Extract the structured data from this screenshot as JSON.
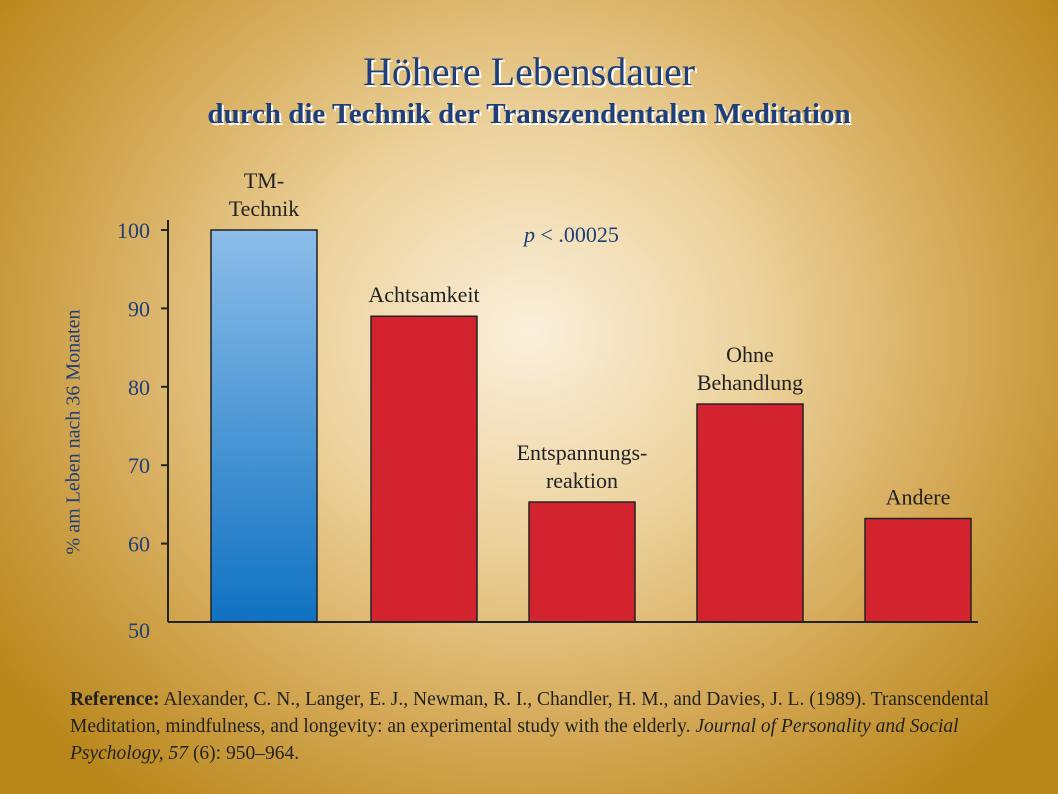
{
  "title": "Höhere Lebensdauer",
  "subtitle": "durch die Technik der Transzendentalen Meditation",
  "p_value": {
    "symbol": "p",
    "text": "< .00025"
  },
  "reference": {
    "label": "Reference:",
    "text_1": "Alexander, C. N., Langer, E. J., Newman, R. I., Chandler, H. M., and Davies, J. L. (1989). Transcendental Meditation, mindfulness, and longevity: an experimental study with the elderly.",
    "journal": "Journal of Personality and Social Psychology, 57",
    "text_2": "(6): 950–964."
  },
  "colors": {
    "title": "#1f3f79",
    "tm_bar_top": "#8dbde9",
    "tm_bar_bottom": "#0f72c2",
    "other_bar": "#d2232f",
    "axis": "#222222"
  },
  "chart_data": {
    "type": "bar",
    "categories": [
      [
        "TM-",
        "Technik"
      ],
      [
        "Achtsamkeit"
      ],
      [
        "Entspannungs-",
        "reaktion"
      ],
      [
        "Ohne",
        "Behandlung"
      ],
      [
        "Andere"
      ]
    ],
    "values": [
      100,
      89,
      65.3,
      77.8,
      63.2
    ],
    "ylabel": "% am Leben nach 36 Monaten",
    "ylim": [
      50,
      100
    ],
    "yticks": [
      50,
      60,
      70,
      80,
      90,
      100
    ],
    "highlight_index": 0,
    "grid": false
  }
}
